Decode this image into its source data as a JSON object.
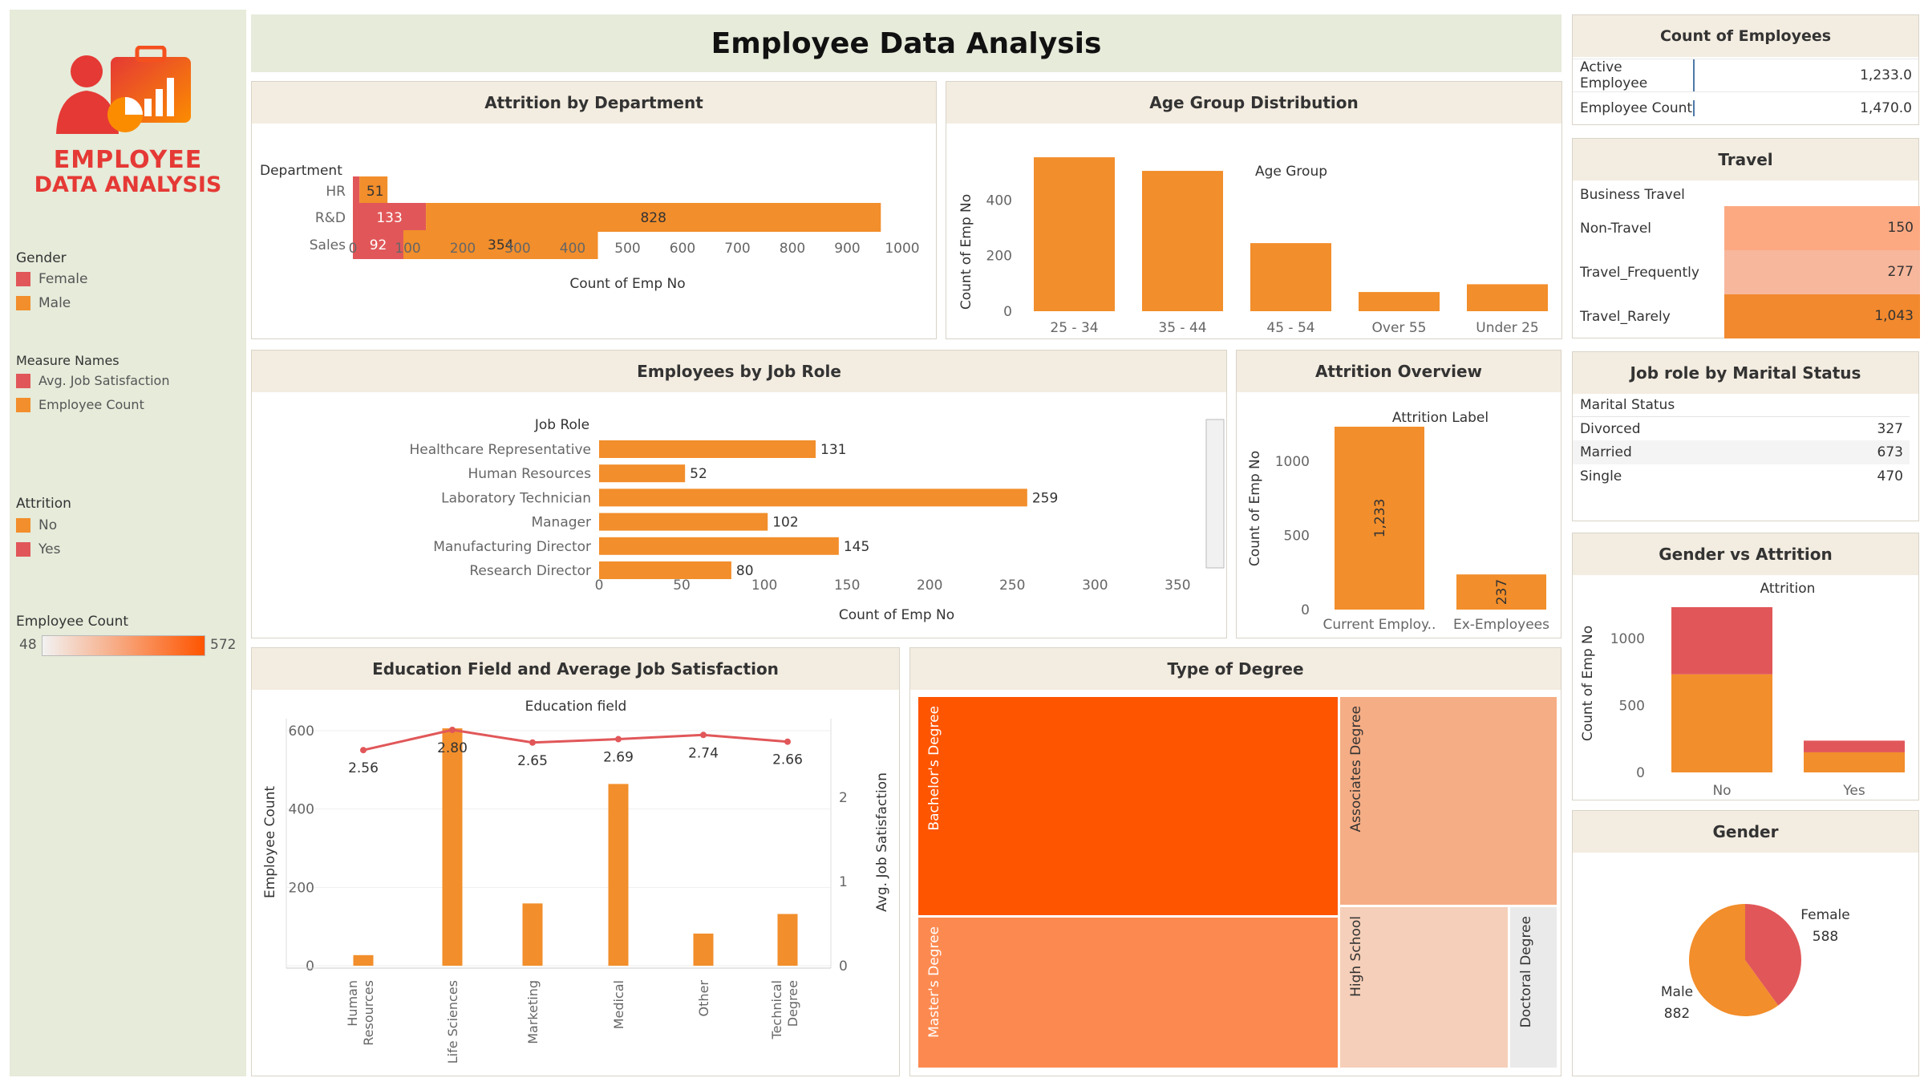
{
  "colors": {
    "orange": "#f28e2b",
    "red": "#e15759",
    "deep_orange": "#fe5500",
    "sidebar_bg": "#e6ebda",
    "header_bg": "#f3ece0"
  },
  "logo": {
    "line1": "EMPLOYEE",
    "line2": "DATA ANALYSIS",
    "icon": "employee-chart-briefcase-icon"
  },
  "page_title": "Employee Data Analysis",
  "legends": {
    "gender": {
      "title": "Gender",
      "items": [
        {
          "label": "Female",
          "color": "#e15759"
        },
        {
          "label": "Male",
          "color": "#f28e2b"
        }
      ]
    },
    "measure_names": {
      "title": "Measure Names",
      "items": [
        {
          "label": "Avg. Job Satisfaction",
          "color": "#e15759"
        },
        {
          "label": "Employee Count",
          "color": "#f28e2b"
        }
      ]
    },
    "attrition": {
      "title": "Attrition",
      "items": [
        {
          "label": "No",
          "color": "#f28e2b"
        },
        {
          "label": "Yes",
          "color": "#e15759"
        }
      ]
    },
    "employee_count": {
      "title": "Employee Count",
      "min": "48",
      "max": "572"
    }
  },
  "kpi": {
    "title": "Count of Employees",
    "rows": [
      {
        "label": "Active Employee",
        "value": "1,233.0"
      },
      {
        "label": "Employee Count",
        "value": "1,470.0"
      }
    ]
  },
  "travel": {
    "title": "Travel",
    "column_header": "Business Travel",
    "rows": [
      {
        "label": "Non-Travel",
        "value": "150",
        "color": "#fca982"
      },
      {
        "label": "Travel_Frequently",
        "value": "277",
        "color": "#f7b79c"
      },
      {
        "label": "Travel_Rarely",
        "value": "1,043",
        "color": "#f2892e"
      }
    ]
  },
  "marital": {
    "title": "Job role by Marital Status",
    "column_header": "Marital Status",
    "rows": [
      {
        "label": "Divorced",
        "value": "327"
      },
      {
        "label": "Married",
        "value": "673"
      },
      {
        "label": "Single",
        "value": "470"
      }
    ]
  },
  "chart_data": [
    {
      "id": "attrition_by_department",
      "type": "bar",
      "orientation": "horizontal",
      "stacked": true,
      "title": "Attrition by Department",
      "header": "Department",
      "xlabel": "Count of Emp No",
      "categories": [
        "HR",
        "R&D",
        "Sales"
      ],
      "series": [
        {
          "name": "Yes",
          "color": "#e15759",
          "values": [
            12,
            133,
            92
          ]
        },
        {
          "name": "No",
          "color": "#f28e2b",
          "values": [
            51,
            828,
            354
          ]
        }
      ],
      "xlim": [
        0,
        1000
      ],
      "xticks": [
        "0",
        "100",
        "200",
        "300",
        "400",
        "500",
        "600",
        "700",
        "800",
        "900",
        "1000"
      ],
      "grid": false
    },
    {
      "id": "age_group_distribution",
      "type": "bar",
      "title": "Age Group Distribution",
      "header": "Age Group",
      "ylabel": "Count of Emp No",
      "categories": [
        "25 - 34",
        "35 - 44",
        "45 - 54",
        "Over 55",
        "Under 25"
      ],
      "values": [
        554,
        505,
        245,
        69,
        97
      ],
      "ylim": [
        0,
        560
      ],
      "yticks": [
        "0",
        "200",
        "400"
      ],
      "grid": false
    },
    {
      "id": "employees_by_job_role",
      "type": "bar",
      "orientation": "horizontal",
      "title": "Employees by Job Role",
      "header": "Job Role",
      "xlabel": "Count of Emp No",
      "categories": [
        "Healthcare Representative",
        "Human Resources",
        "Laboratory Technician",
        "Manager",
        "Manufacturing Director",
        "Research Director"
      ],
      "values": [
        131,
        52,
        259,
        102,
        145,
        80
      ],
      "xlim": [
        0,
        360
      ],
      "xticks": [
        "0",
        "50",
        "100",
        "150",
        "200",
        "250",
        "300",
        "350"
      ],
      "grid": false
    },
    {
      "id": "attrition_overview",
      "type": "bar",
      "title": "Attrition Overview",
      "header": "Attrition Label",
      "ylabel": "Count of Emp No",
      "categories": [
        "Current Employ..",
        "Ex-Employees"
      ],
      "values": [
        1233,
        237
      ],
      "value_labels": [
        "1,233",
        "237"
      ],
      "ylim": [
        0,
        1250
      ],
      "yticks": [
        "0",
        "500",
        "1000"
      ],
      "grid": false
    },
    {
      "id": "gender_vs_attrition",
      "type": "bar",
      "stacked": true,
      "title": "Gender vs Attrition",
      "header": "Attrition",
      "ylabel": "Count of Emp No",
      "categories": [
        "No",
        "Yes"
      ],
      "series": [
        {
          "name": "Male",
          "color": "#f28e2b",
          "values": [
            732,
            150
          ]
        },
        {
          "name": "Female",
          "color": "#e15759",
          "values": [
            501,
            87
          ]
        }
      ],
      "ylim": [
        0,
        1250
      ],
      "yticks": [
        "0",
        "500",
        "1000"
      ],
      "grid": false
    },
    {
      "id": "education_field",
      "type": "bar",
      "combo": "bar+line",
      "title": "Education Field and  Average Job Satisfaction",
      "header": "Education field",
      "ylabel": "Employee Count",
      "y2label": "Avg. Job Satisfaction",
      "categories": [
        "Human Resources",
        "Life Sciences",
        "Marketing",
        "Medical",
        "Other",
        "Technical Degree"
      ],
      "category_labels": [
        [
          "Human",
          "Resources"
        ],
        [
          "Life Sciences"
        ],
        [
          "Marketing"
        ],
        [
          "Medical"
        ],
        [
          "Other"
        ],
        [
          "Technical",
          "Degree"
        ]
      ],
      "series": [
        {
          "name": "Employee Count",
          "color": "#f28e2b",
          "axis": "left",
          "values": [
            27,
            606,
            159,
            464,
            82,
            132
          ]
        },
        {
          "name": "Avg. Job Satisfaction",
          "color": "#e15759",
          "axis": "right",
          "type": "line",
          "values": [
            2.56,
            2.8,
            2.65,
            2.69,
            2.74,
            2.66
          ]
        }
      ],
      "line_labels": [
        "2.56",
        "2.80",
        "2.65",
        "2.69",
        "2.74",
        "2.66"
      ],
      "ylim": [
        0,
        640
      ],
      "yticks": [
        "0",
        "200",
        "400",
        "600"
      ],
      "y2lim": [
        0,
        2.85
      ],
      "y2ticks": [
        "0",
        "1",
        "2"
      ],
      "grid": true
    },
    {
      "id": "type_of_degree",
      "type": "heatmap",
      "subtype": "treemap",
      "title": "Type of Degree",
      "cells": [
        {
          "label": "Bachelor's Degree",
          "color": "#fe5500"
        },
        {
          "label": "Master's Degree",
          "color": "#fc8a50"
        },
        {
          "label": "Associates Degree",
          "color": "#f5ad85"
        },
        {
          "label": "High School",
          "color": "#f5cfb9"
        },
        {
          "label": "Doctoral Degree",
          "color": "#eaeaea"
        }
      ]
    },
    {
      "id": "gender",
      "type": "pie",
      "title": "Gender",
      "categories": [
        "Female",
        "Male"
      ],
      "values": [
        588,
        882
      ],
      "colors": [
        "#e15759",
        "#f28e2b"
      ]
    }
  ]
}
